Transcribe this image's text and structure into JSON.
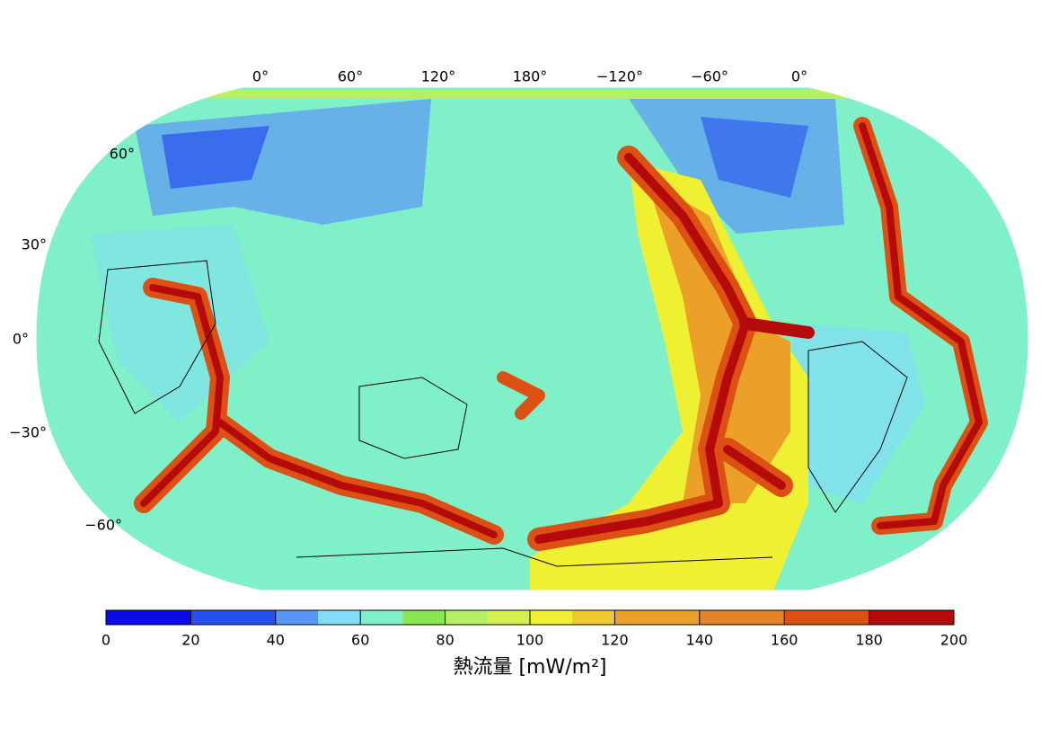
{
  "map": {
    "longitude_labels": [
      "0°",
      "60°",
      "120°",
      "180°",
      "−120°",
      "−60°",
      "0°"
    ],
    "latitude_labels": [
      "60°",
      "30°",
      "0°",
      "−30°",
      "−60°"
    ]
  },
  "colorbar": {
    "lim": [
      0,
      200
    ],
    "ticks": [
      0,
      20,
      40,
      60,
      80,
      100,
      120,
      140,
      160,
      180,
      200
    ],
    "colors": [
      "#0a0aeb",
      "#0a0aeb",
      "#2850f0",
      "#2850f0",
      "#5a96f5",
      "#82dcf8",
      "#80f0c8",
      "#8ce650",
      "#b4f064",
      "#d7f050",
      "#f0f032",
      "#f0c832",
      "#eba028",
      "#eba028",
      "#e68228",
      "#e68228",
      "#dc5014",
      "#dc5014",
      "#b40a0a",
      "#b40a0a"
    ],
    "label": "熱流量 [mW/m²]"
  }
}
